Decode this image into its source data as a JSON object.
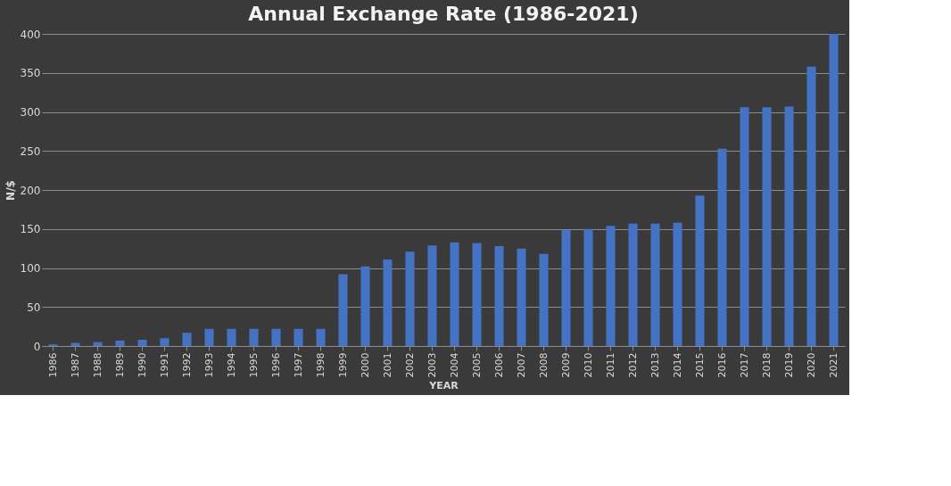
{
  "chart_data": {
    "type": "bar",
    "title": "Annual Exchange Rate (1986-2021)",
    "xlabel": "YEAR",
    "ylabel": "N/$",
    "categories": [
      "1986",
      "1987",
      "1988",
      "1989",
      "1990",
      "1991",
      "1992",
      "1993",
      "1994",
      "1995",
      "1996",
      "1997",
      "1998",
      "1999",
      "2000",
      "2001",
      "2002",
      "2003",
      "2004",
      "2005",
      "2006",
      "2007",
      "2008",
      "2009",
      "2010",
      "2011",
      "2012",
      "2013",
      "2014",
      "2015",
      "2016",
      "2017",
      "2018",
      "2019",
      "2020",
      "2021"
    ],
    "values": [
      2,
      4,
      5,
      7,
      8,
      10,
      17,
      22,
      22,
      22,
      22,
      22,
      22,
      92,
      102,
      111,
      121,
      129,
      133,
      132,
      128,
      125,
      118,
      149,
      150,
      154,
      157,
      157,
      158,
      193,
      253,
      306,
      306,
      307,
      358,
      400
    ],
    "color": "#4472c4",
    "ylim": [
      0,
      400
    ],
    "yticks": [
      0,
      50,
      100,
      150,
      200,
      250,
      300,
      350,
      400
    ],
    "grid": "y"
  }
}
